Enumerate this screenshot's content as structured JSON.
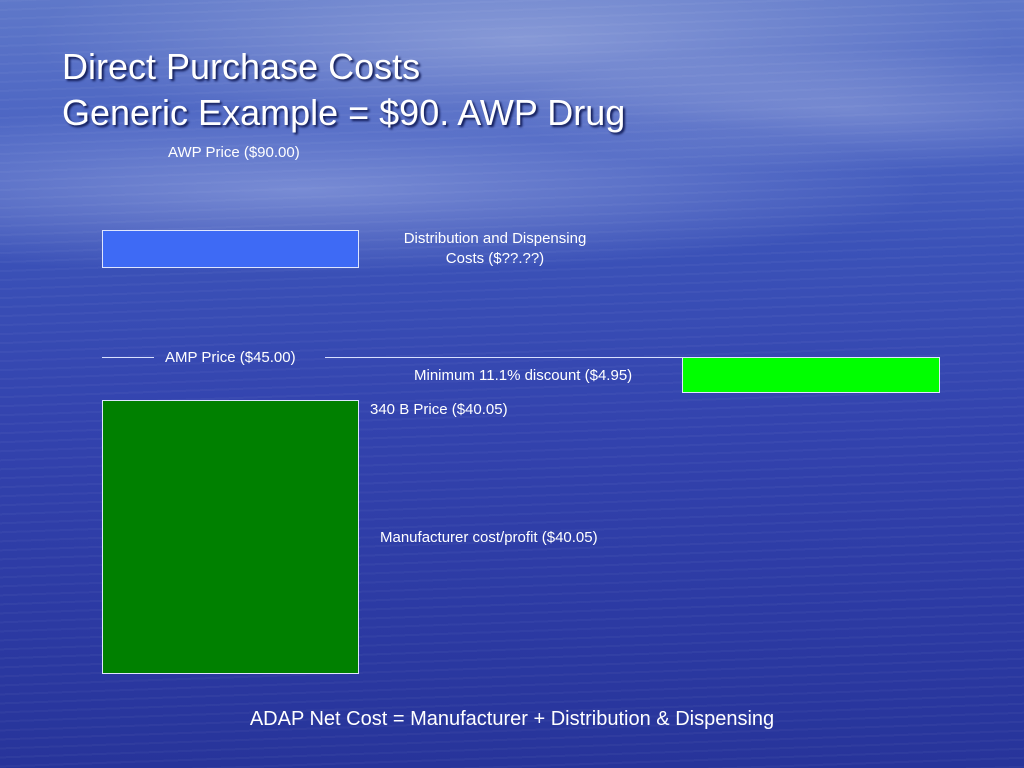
{
  "title": {
    "line1": "Direct Purchase Costs",
    "line2": "Generic Example = $90. AWP Drug"
  },
  "labels": {
    "awp": "AWP Price ($90.00)",
    "distribution_line1": "Distribution and Dispensing",
    "distribution_line2": "Costs ($??.??)",
    "amp": "AMP Price ($45.00)",
    "min_discount": "Minimum 11.1% discount ($4.95)",
    "price_340b": "340 B Price ($40.05)",
    "manufacturer": "Manufacturer cost/profit ($40.05)"
  },
  "footer": "ADAP Net Cost = Manufacturer + Distribution & Dispensing",
  "colors": {
    "distribution_box": "#3e6af5",
    "discount_box": "#00ff00",
    "manufacturer_box": "#008000"
  }
}
